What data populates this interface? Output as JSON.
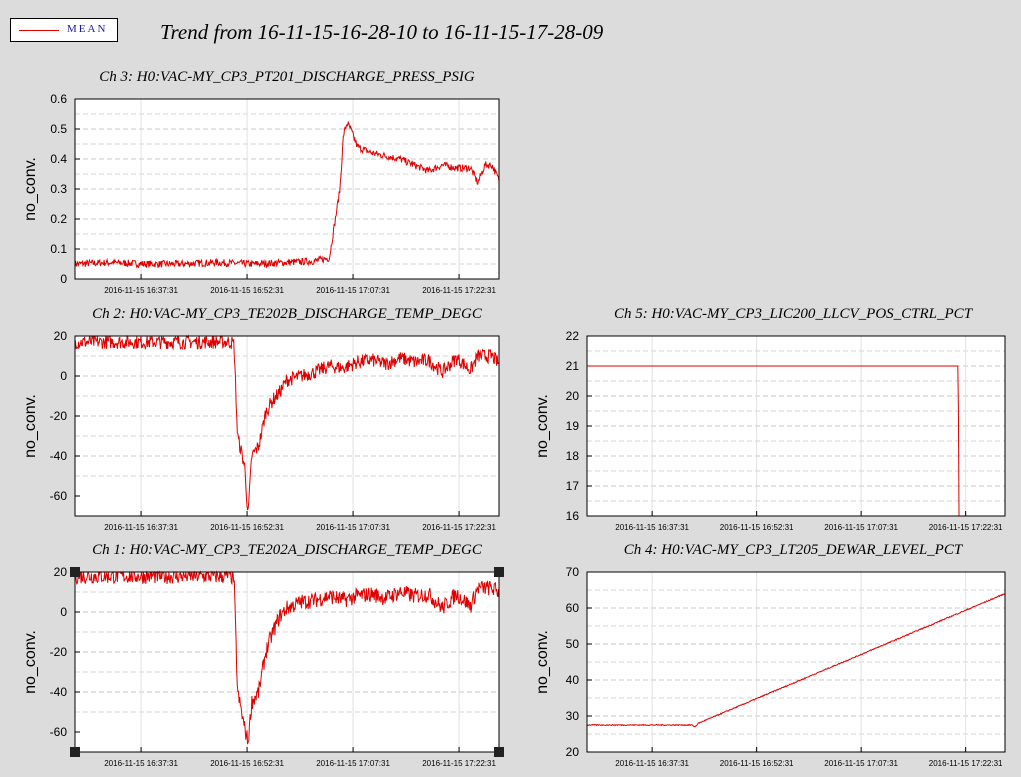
{
  "legend": {
    "label": "MEAN",
    "color": "#e00000"
  },
  "title": "Trend from 16-11-15-16-28-10 to 16-11-15-17-28-09",
  "chart_data": [
    {
      "id": "ch3",
      "type": "line",
      "title": "Ch 3: H0:VAC-MY_CP3_PT201_DISCHARGE_PRESS_PSIG",
      "ylabel": "no_conv.",
      "ylim": [
        0,
        0.6
      ],
      "yticks": [
        "0",
        "0.1",
        "0.2",
        "0.3",
        "0.4",
        "0.5",
        "0.6"
      ],
      "xticks": [
        "2016-11-15 16:37:31",
        "2016-11-15 16:52:31",
        "2016-11-15 17:07:31",
        "2016-11-15 17:22:31"
      ],
      "xlim_minutes": [
        0,
        60
      ],
      "grid": true,
      "series": [
        {
          "color": "#e00000",
          "x": [
            0,
            5,
            10,
            15,
            20,
            25,
            30,
            34,
            36,
            37.5,
            38,
            38.5,
            39,
            40,
            42,
            44,
            46,
            48,
            50,
            52,
            54,
            56,
            57,
            58,
            59,
            60
          ],
          "y": [
            0.05,
            0.055,
            0.05,
            0.05,
            0.055,
            0.05,
            0.055,
            0.06,
            0.07,
            0.3,
            0.48,
            0.52,
            0.5,
            0.44,
            0.42,
            0.41,
            0.4,
            0.38,
            0.36,
            0.38,
            0.37,
            0.37,
            0.32,
            0.38,
            0.38,
            0.33
          ],
          "noise": 0.012
        }
      ]
    },
    {
      "id": "ch2",
      "type": "line",
      "title": "Ch 2: H0:VAC-MY_CP3_TE202B_DISCHARGE_TEMP_DEGC",
      "ylabel": "no_conv.",
      "ylim": [
        -70,
        20
      ],
      "yticks": [
        "-60",
        "-40",
        "-20",
        "0",
        "20"
      ],
      "xticks": [
        "2016-11-15 16:37:31",
        "2016-11-15 16:52:31",
        "2016-11-15 17:07:31",
        "2016-11-15 17:22:31"
      ],
      "xlim_minutes": [
        0,
        60
      ],
      "grid": true,
      "series": [
        {
          "color": "#e00000",
          "x": [
            0,
            10,
            20,
            22,
            22.5,
            23,
            24,
            24.5,
            25,
            26,
            27,
            28,
            29,
            30,
            32,
            34,
            36,
            38,
            40,
            42,
            44,
            46,
            48,
            50,
            52,
            54,
            56,
            57,
            58,
            59,
            60
          ],
          "y": [
            17,
            17,
            17,
            17,
            16,
            -30,
            -45,
            -70,
            -40,
            -35,
            -18,
            -12,
            -8,
            -2,
            0,
            2,
            5,
            4,
            7,
            8,
            6,
            9,
            7,
            8,
            2,
            9,
            3,
            10,
            10,
            10,
            6
          ],
          "noise": 3.5
        }
      ]
    },
    {
      "id": "ch5",
      "type": "line",
      "title": "Ch 5: H0:VAC-MY_CP3_LIC200_LLCV_POS_CTRL_PCT",
      "ylabel": "no_conv.",
      "ylim": [
        16,
        22
      ],
      "yticks": [
        "16",
        "17",
        "18",
        "19",
        "20",
        "21",
        "22"
      ],
      "xticks": [
        "2016-11-15 16:37:31",
        "2016-11-15 16:52:31",
        "2016-11-15 17:07:31",
        "2016-11-15 17:22:31"
      ],
      "xlim_minutes": [
        0,
        60
      ],
      "grid": true,
      "series": [
        {
          "color": "#e00000",
          "x": [
            0,
            53.3,
            53.35
          ],
          "y": [
            21,
            21,
            16
          ],
          "noise": 0
        }
      ]
    },
    {
      "id": "ch1",
      "type": "line",
      "title": "Ch 1: H0:VAC-MY_CP3_TE202A_DISCHARGE_TEMP_DEGC",
      "ylabel": "no_conv.",
      "ylim": [
        -70,
        20
      ],
      "yticks": [
        "-60",
        "-40",
        "-20",
        "0",
        "20"
      ],
      "xticks": [
        "2016-11-15 16:37:31",
        "2016-11-15 16:52:31",
        "2016-11-15 17:07:31",
        "2016-11-15 17:22:31"
      ],
      "xlim_minutes": [
        0,
        60
      ],
      "grid": true,
      "series": [
        {
          "color": "#e00000",
          "x": [
            0,
            10,
            20,
            22,
            22.5,
            23,
            24,
            24.5,
            25,
            26,
            27,
            28,
            29,
            30,
            32,
            34,
            36,
            38,
            40,
            42,
            44,
            46,
            48,
            50,
            52,
            54,
            56,
            57,
            58,
            59,
            60
          ],
          "y": [
            18,
            18,
            18,
            18,
            17,
            -40,
            -58,
            -65,
            -45,
            -40,
            -20,
            -10,
            -2,
            2,
            5,
            6,
            8,
            6,
            8,
            9,
            7,
            10,
            8,
            9,
            2,
            9,
            3,
            12,
            12,
            12,
            10
          ],
          "noise": 4
        }
      ]
    },
    {
      "id": "ch4",
      "type": "line",
      "title": "Ch 4: H0:VAC-MY_CP3_LT205_DEWAR_LEVEL_PCT",
      "ylabel": "no_conv.",
      "ylim": [
        20,
        70
      ],
      "yticks": [
        "20",
        "30",
        "40",
        "50",
        "60",
        "70"
      ],
      "xticks": [
        "2016-11-15 16:37:31",
        "2016-11-15 16:52:31",
        "2016-11-15 17:07:31",
        "2016-11-15 17:22:31"
      ],
      "xlim_minutes": [
        0,
        60
      ],
      "grid": true,
      "series": [
        {
          "color": "#e00000",
          "x": [
            0,
            15,
            15.5,
            16,
            60
          ],
          "y": [
            27.5,
            27.5,
            27,
            28,
            64
          ],
          "noise": 0.15
        }
      ]
    }
  ]
}
